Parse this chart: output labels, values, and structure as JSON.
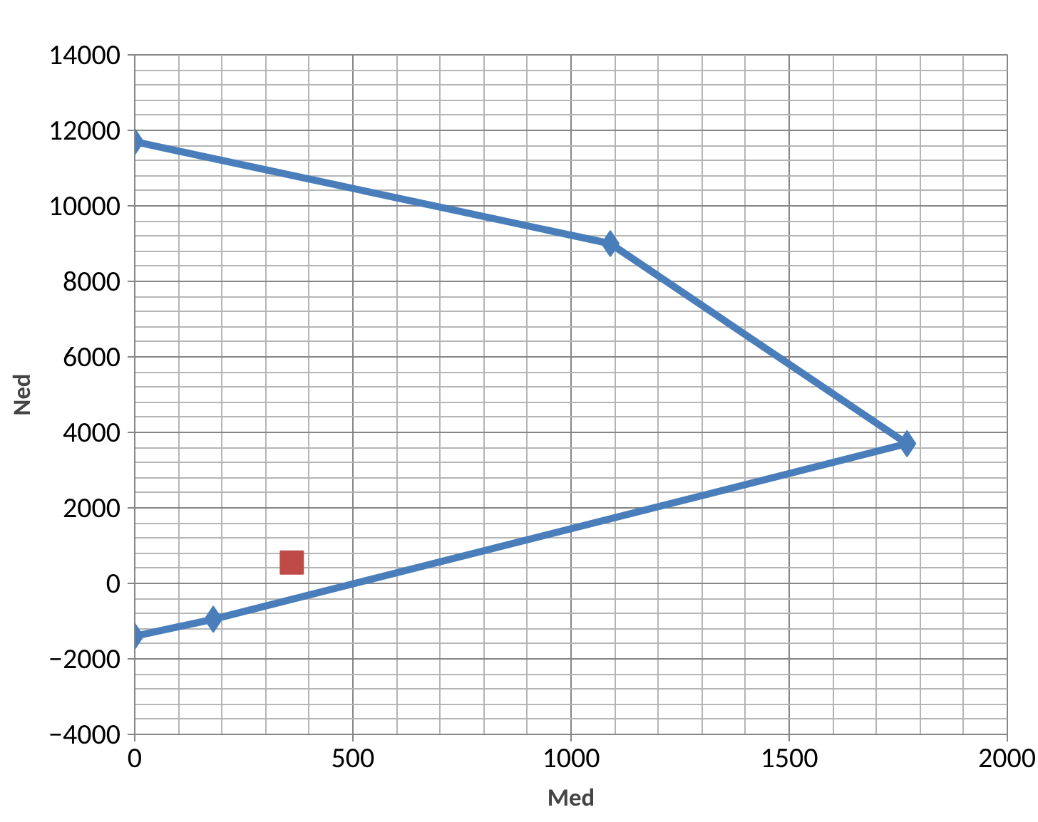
{
  "chart_data": {
    "type": "line",
    "xlabel": "Med",
    "ylabel": "Ned",
    "series": [
      {
        "color": "#4a7ebb",
        "marker": "diamond",
        "x": [
          0,
          1090,
          1770,
          180,
          0
        ],
        "values": [
          11700,
          9000,
          3700,
          -950,
          -1400
        ]
      },
      {
        "type": "scatter",
        "color": "#be4b48",
        "marker": "square",
        "x": [
          360
        ],
        "values": [
          550
        ]
      }
    ],
    "xlim": [
      0,
      2000
    ],
    "ylim": [
      -4000,
      14000
    ],
    "xticks": [
      0,
      500,
      1000,
      1500,
      2000
    ],
    "yticks": [
      -4000,
      -2000,
      0,
      2000,
      4000,
      6000,
      8000,
      10000,
      12000,
      14000
    ],
    "grid": true
  }
}
